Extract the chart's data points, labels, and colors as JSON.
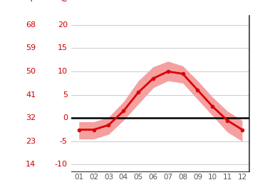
{
  "months": [
    1,
    2,
    3,
    4,
    5,
    6,
    7,
    8,
    9,
    10,
    11,
    12
  ],
  "mean_temps_c": [
    -2.5,
    -2.5,
    -1.5,
    1.5,
    5.5,
    8.5,
    10.0,
    9.5,
    6.0,
    2.5,
    -0.5,
    -2.5
  ],
  "upper_band_c": [
    -0.8,
    -0.8,
    0.2,
    3.5,
    8.0,
    11.0,
    12.2,
    11.2,
    8.0,
    4.5,
    1.5,
    -0.5
  ],
  "lower_band_c": [
    -4.5,
    -4.5,
    -3.5,
    -0.5,
    3.0,
    6.5,
    8.0,
    7.5,
    4.0,
    0.5,
    -3.0,
    -5.0
  ],
  "yticks_c": [
    -10,
    -5,
    0,
    5,
    10,
    15,
    20
  ],
  "yticks_f": [
    14,
    23,
    32,
    41,
    50,
    59,
    68
  ],
  "ylim": [
    -11.5,
    22
  ],
  "xlim": [
    0.5,
    12.5
  ],
  "line_color": "#dd0000",
  "band_color": "#f4a0a0",
  "zero_line_color": "#000000",
  "grid_color": "#cccccc",
  "tick_color": "#cc0000",
  "xtick_color": "#555555",
  "background_color": "#ffffff",
  "xtick_labels": [
    "01",
    "02",
    "03",
    "04",
    "05",
    "06",
    "07",
    "08",
    "09",
    "10",
    "11",
    "12"
  ],
  "right_spine_color": "#333333",
  "bottom_spine_color": "#333333"
}
